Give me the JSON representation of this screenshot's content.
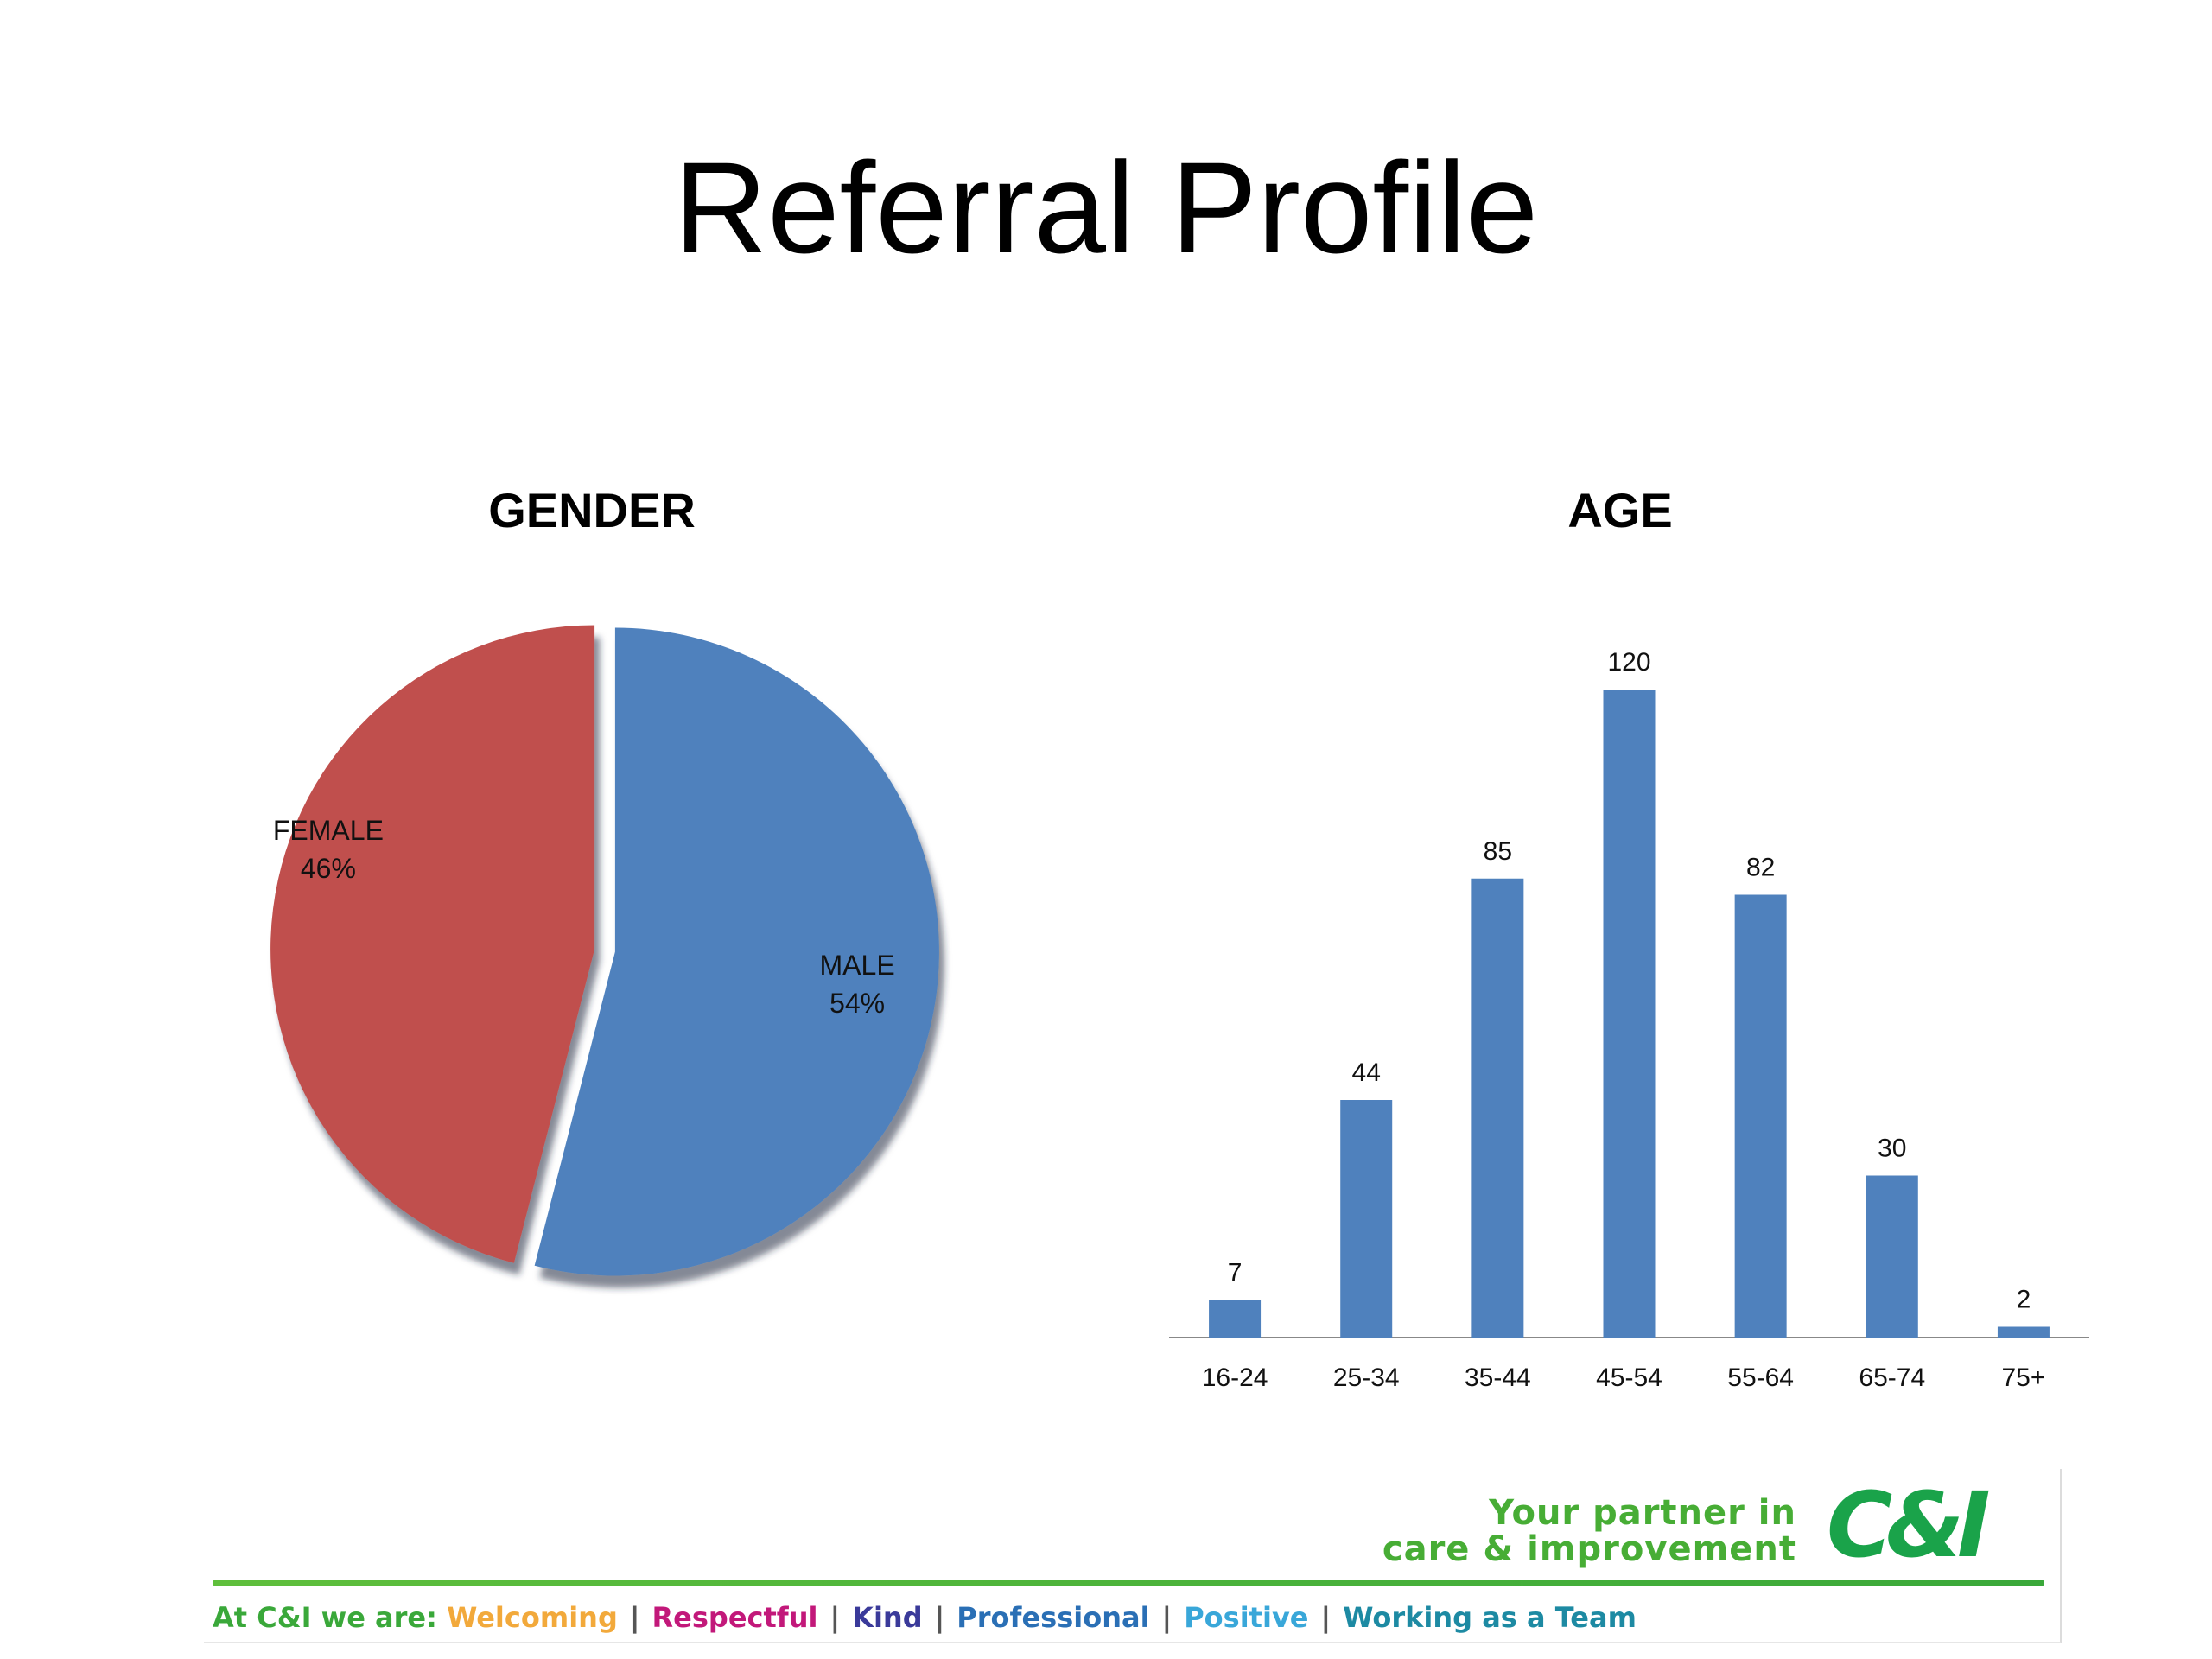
{
  "slide": {
    "title": "Referral Profile"
  },
  "chart_data": [
    {
      "type": "pie",
      "title": "GENDER",
      "slices": [
        {
          "label": "MALE",
          "value": 54,
          "display": "54%",
          "color": "#4f81bd"
        },
        {
          "label": "FEMALE",
          "value": 46,
          "display": "46%",
          "color": "#c0504d"
        }
      ]
    },
    {
      "type": "bar",
      "title": "AGE",
      "categories": [
        "16-24",
        "25-34",
        "35-44",
        "45-54",
        "55-64",
        "65-74",
        "75+"
      ],
      "values": [
        7,
        44,
        85,
        120,
        82,
        30,
        2
      ],
      "color": "#4f81bd",
      "ylim": [
        0,
        120
      ],
      "grid": false
    }
  ],
  "footer": {
    "tagline_line1": "Your partner in",
    "tagline_line2": "care & improvement",
    "logo": "C&I",
    "values_prefix": "At C&I we are:",
    "values": [
      {
        "text": "Welcoming",
        "color": "#f2a93b"
      },
      {
        "text": "Respectful",
        "color": "#c2187a"
      },
      {
        "text": "Kind",
        "color": "#3a3a9a"
      },
      {
        "text": "Professional",
        "color": "#2a6fb5"
      },
      {
        "text": "Positive",
        "color": "#39a7d9"
      },
      {
        "text": "Working as a Team",
        "color": "#1d8aa3"
      }
    ],
    "separator": "|"
  }
}
